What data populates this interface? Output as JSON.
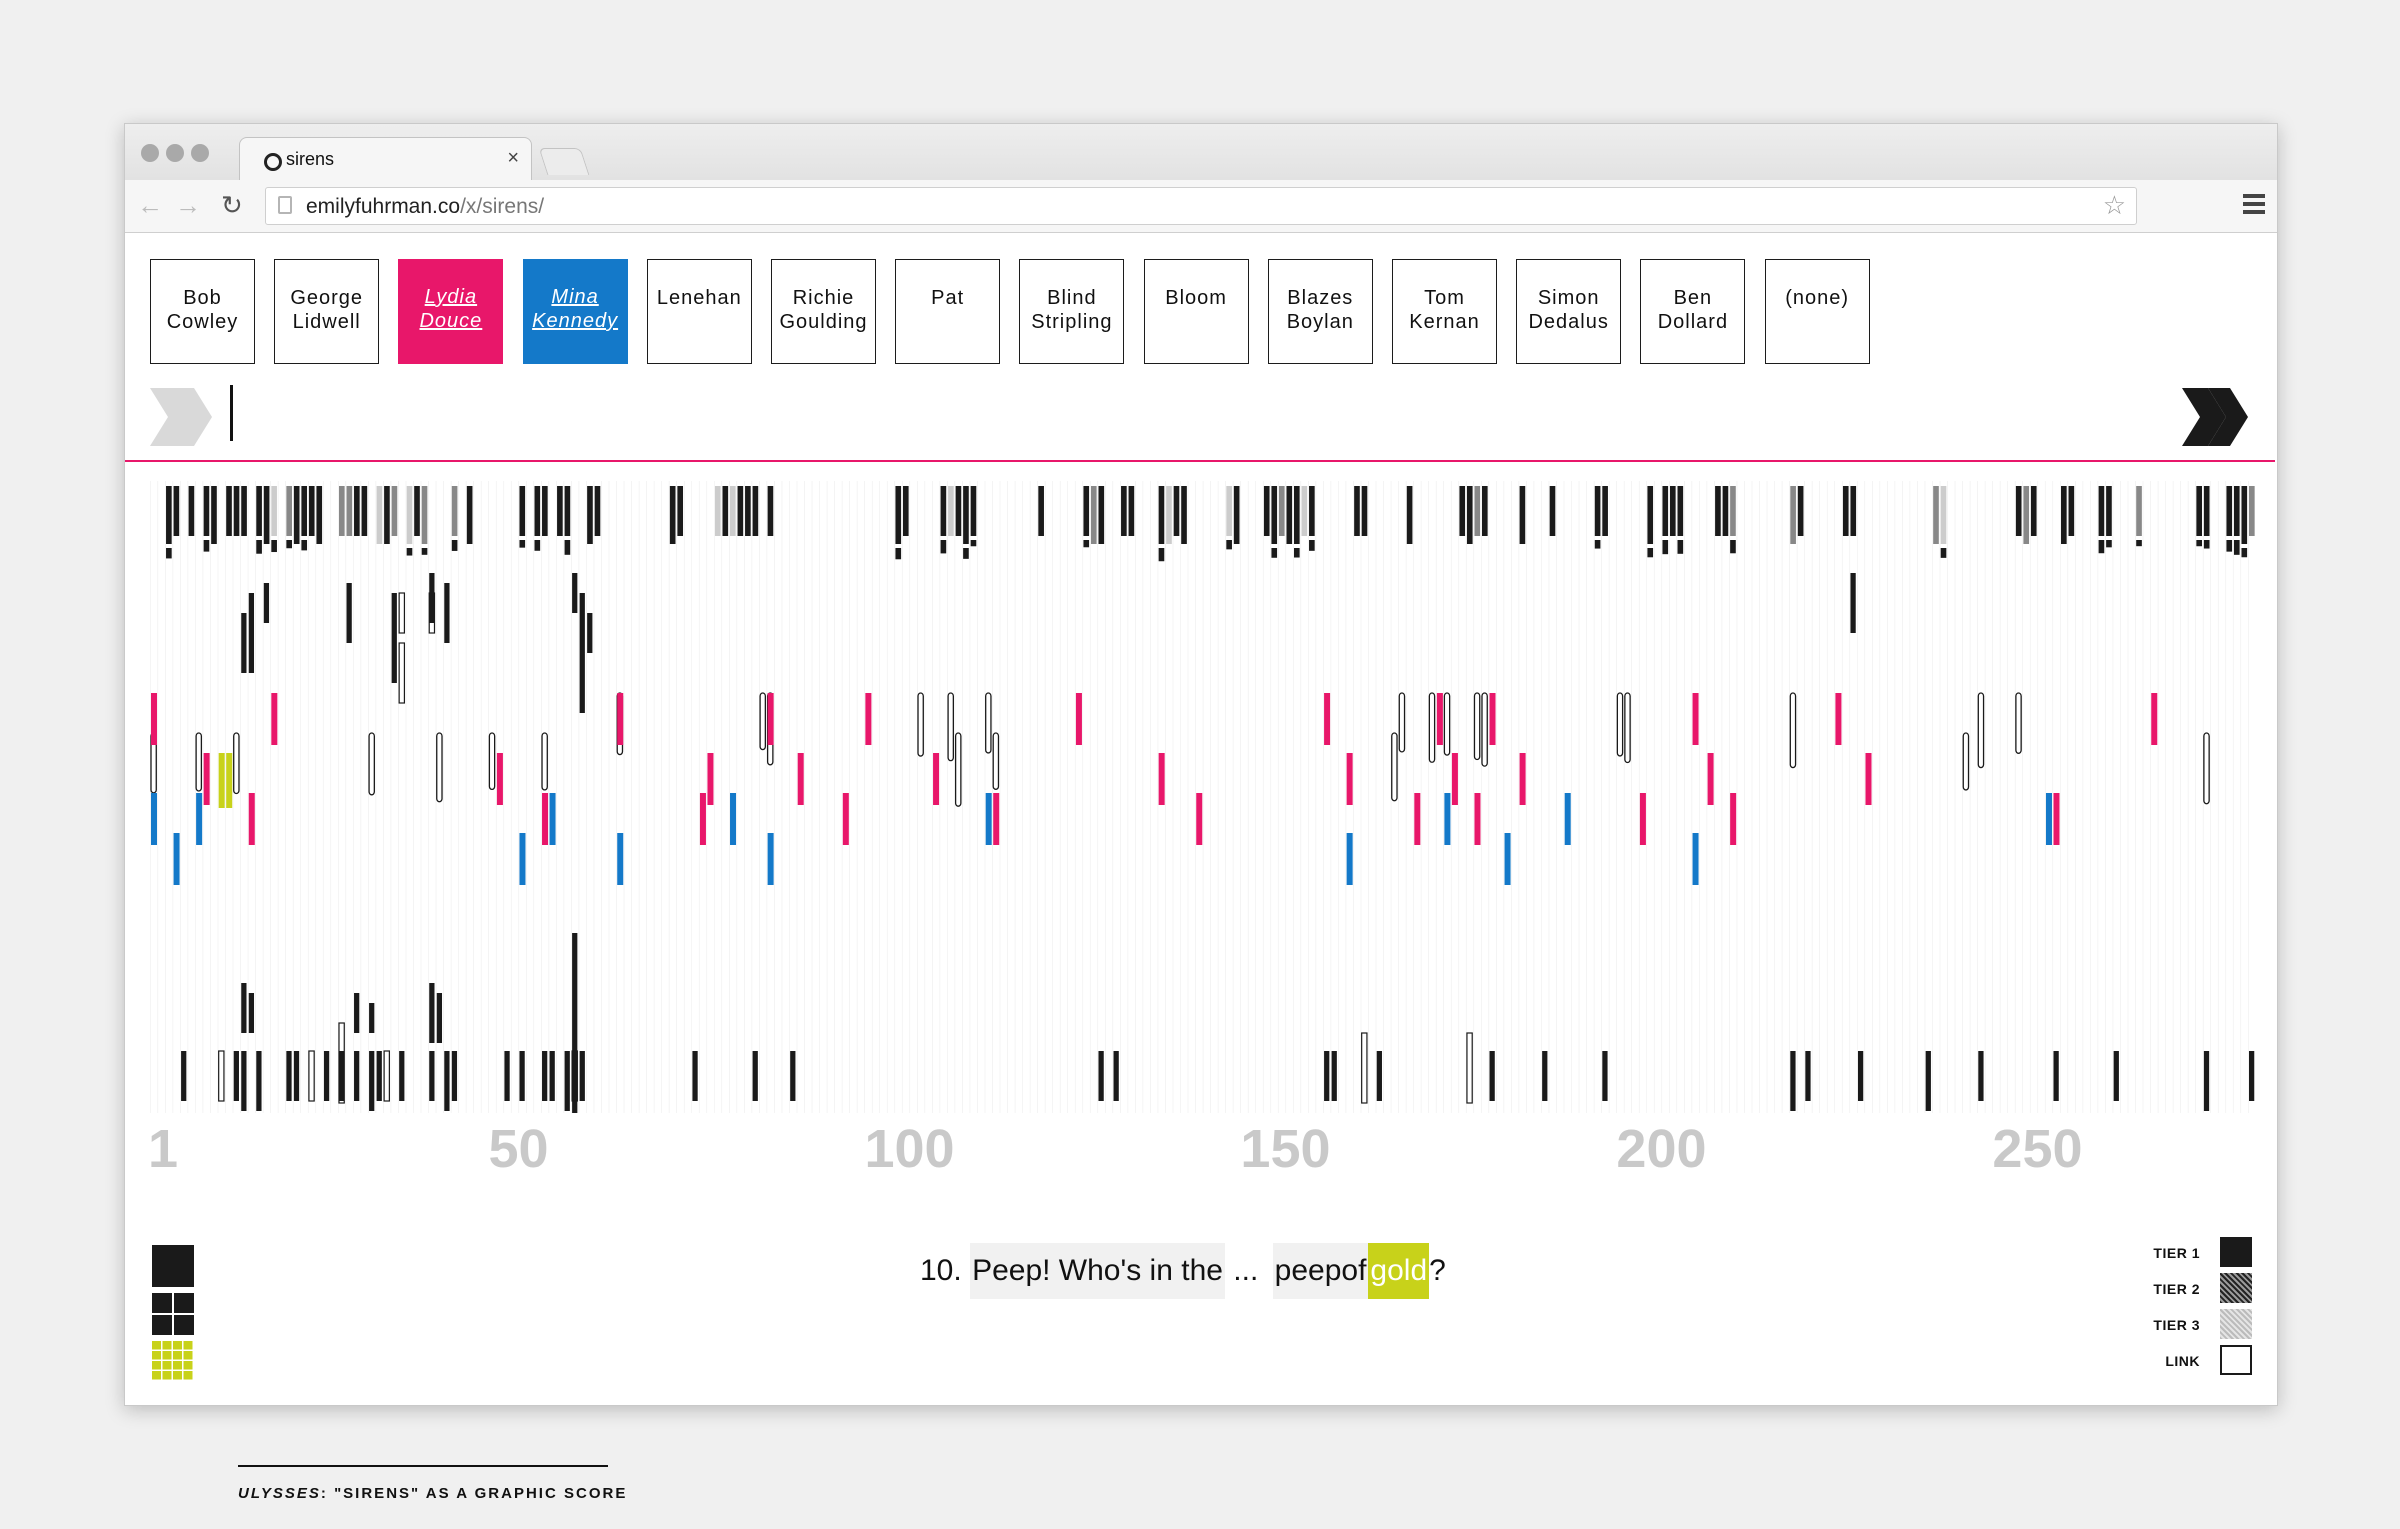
{
  "browser": {
    "tab_title": "sirens",
    "url_domain": "emilyfuhrman.co",
    "url_path": "/x/sirens/",
    "back": "←",
    "forward": "→",
    "reload": "↻",
    "star": "☆",
    "close": "×"
  },
  "characters": [
    {
      "line1": "Bob",
      "line2": "Cowley",
      "state": "off"
    },
    {
      "line1": "George",
      "line2": "Lidwell",
      "state": "off"
    },
    {
      "line1": "Lydia",
      "line2": "Douce",
      "state": "red"
    },
    {
      "line1": "Mina",
      "line2": "Kennedy",
      "state": "blue"
    },
    {
      "line1": "Lenehan",
      "line2": "",
      "state": "off"
    },
    {
      "line1": "Richie",
      "line2": "Goulding",
      "state": "off"
    },
    {
      "line1": "Pat",
      "line2": "",
      "state": "off"
    },
    {
      "line1": "Blind",
      "line2": "Stripling",
      "state": "off"
    },
    {
      "line1": "Bloom",
      "line2": "",
      "state": "off"
    },
    {
      "line1": "Blazes",
      "line2": "Boylan",
      "state": "off"
    },
    {
      "line1": "Tom",
      "line2": "Kernan",
      "state": "off"
    },
    {
      "line1": "Simon",
      "line2": "Dedalus",
      "state": "off"
    },
    {
      "line1": "Ben",
      "line2": "Dollard",
      "state": "off"
    },
    {
      "line1": "(none)",
      "line2": "",
      "state": "off"
    }
  ],
  "axis": [
    "1",
    "50",
    "100",
    "150",
    "200",
    "250"
  ],
  "sentence": {
    "number": "10.",
    "part1": "Peep! Who's in the",
    "ellipsis": "...",
    "part2": "peepof",
    "gold": "gold",
    "end": "?"
  },
  "footer": {
    "title_italic": "ULYSSES",
    "title_rest": ": \"SIRENS\" AS A GRAPHIC SCORE"
  },
  "legend": {
    "tier1": "TIER 1",
    "tier2": "TIER 2",
    "tier3": "TIER 3",
    "link": "LINK"
  },
  "colors": {
    "red": "#e8176a",
    "blue": "#1479c9",
    "gold": "#c8d21a",
    "black": "#1a1a1a"
  },
  "chart_data": {
    "type": "graphic-score",
    "x_range": [
      1,
      280
    ],
    "x_ticks": [
      1,
      50,
      100,
      150,
      200,
      250
    ],
    "red_marks_x": [
      1,
      8,
      14,
      17,
      47,
      53,
      63,
      75,
      74,
      83,
      87,
      93,
      96,
      105,
      113,
      124,
      135,
      140,
      157,
      160,
      169,
      172,
      174,
      177,
      179,
      183,
      199,
      206,
      208,
      211,
      225,
      229,
      254,
      267
    ],
    "blue_marks_x": [
      1,
      4,
      7,
      50,
      54,
      63,
      78,
      83,
      112,
      160,
      173,
      181,
      189,
      206,
      253
    ],
    "highlight_x": [
      10,
      11
    ]
  }
}
